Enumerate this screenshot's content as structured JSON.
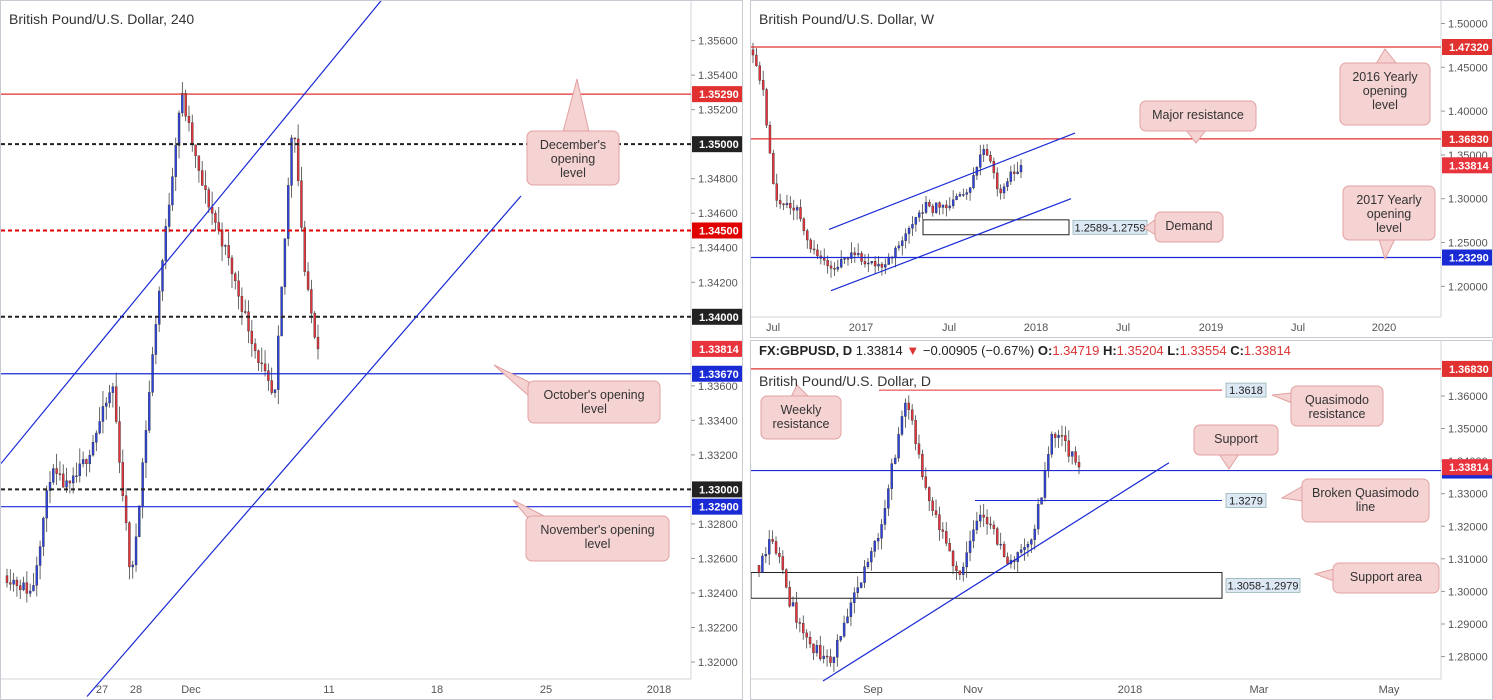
{
  "chart_data": [
    {
      "id": "h4",
      "type": "candlestick",
      "title": "British Pound/U.S. Dollar, 240",
      "ylim": [
        1.3189,
        1.3576
      ],
      "y_ticks": [
        "1.35600",
        "1.35400",
        "1.35200",
        "1.34800",
        "1.34600",
        "1.34400",
        "1.34200",
        "1.33600",
        "1.33400",
        "1.33200",
        "1.32800",
        "1.32600",
        "1.32400",
        "1.32200",
        "1.32000"
      ],
      "x_ticks": [
        "27",
        "28",
        "Dec",
        "11",
        "18",
        "25",
        "2018"
      ],
      "levels": [
        {
          "value": 1.3529,
          "label": "1.35290",
          "color": "#e03030",
          "style": "solid"
        },
        {
          "value": 1.35,
          "label": "1.35000",
          "color": "#222222",
          "style": "dashed"
        },
        {
          "value": 1.345,
          "label": "1.34500",
          "color": "#e00000",
          "style": "dashed"
        },
        {
          "value": 1.34,
          "label": "1.34000",
          "color": "#222222",
          "style": "dashed"
        },
        {
          "value": 1.3367,
          "label": "1.33670",
          "color": "#1a2bd6",
          "style": "solid"
        },
        {
          "value": 1.33,
          "label": "1.33000",
          "color": "#222222",
          "style": "dashed"
        },
        {
          "value": 1.329,
          "label": "1.32900",
          "color": "#1a2bd6",
          "style": "solid"
        }
      ],
      "last_price": {
        "value": 1.33814,
        "label": "1.33814"
      },
      "annotations": [
        {
          "text": "December's opening level"
        },
        {
          "text": "October's opening level"
        },
        {
          "text": "November's opening level"
        }
      ]
    },
    {
      "id": "weekly",
      "type": "candlestick",
      "title": "British Pound/U.S. Dollar, W",
      "ylim": [
        1.165,
        1.512
      ],
      "y_ticks": [
        "1.50000",
        "1.45000",
        "1.40000",
        "1.35000",
        "1.30000",
        "1.25000",
        "1.20000"
      ],
      "x_ticks": [
        "Jul",
        "2017",
        "Jul",
        "2018",
        "Jul",
        "2019",
        "Jul",
        "2020"
      ],
      "levels": [
        {
          "value": 1.4732,
          "label": "1.47320",
          "color": "#e03030",
          "style": "solid"
        },
        {
          "value": 1.3683,
          "label": "1.36830",
          "color": "#e03030",
          "style": "solid"
        },
        {
          "value": 1.2329,
          "label": "1.23290",
          "color": "#1a2bd6",
          "style": "solid"
        }
      ],
      "zones": [
        {
          "label": "1.2589-1.2759",
          "low": 1.2589,
          "high": 1.2759
        }
      ],
      "last_price": {
        "value": 1.33814,
        "label": "1.33814"
      },
      "annotations": [
        {
          "text": "2016 Yearly opening level"
        },
        {
          "text": "Major resistance"
        },
        {
          "text": "Demand"
        },
        {
          "text": "2017 Yearly opening level"
        }
      ]
    },
    {
      "id": "daily",
      "type": "candlestick",
      "header": {
        "symbol": "FX:GBPUSD, D",
        "last": "1.33814",
        "change": "−0.00905 (−0.67%)",
        "o": "1.34719",
        "h": "1.35204",
        "l": "1.33554",
        "c": "1.33814",
        "o_label": "O:",
        "h_label": "H:",
        "l_label": "L:",
        "c_label": "C:"
      },
      "title": "British Pound/U.S. Dollar, D",
      "ylim": [
        1.2725,
        1.3695
      ],
      "y_ticks": [
        "1.36000",
        "1.35000",
        "1.34000",
        "1.33000",
        "1.32000",
        "1.31000",
        "1.30000",
        "1.29000",
        "1.28000"
      ],
      "x_ticks": [
        "Sep",
        "Nov",
        "2018",
        "Mar",
        "May"
      ],
      "levels": [
        {
          "value": 1.3683,
          "label": "1.36830",
          "color": "#e03030",
          "style": "solid"
        },
        {
          "value": 1.3371,
          "label": "1.33710",
          "color": "#1a2bd6",
          "style": "solid"
        }
      ],
      "rays": [
        {
          "value": 1.3618,
          "label": "1.3618"
        },
        {
          "value": 1.3279,
          "label": "1.3279"
        }
      ],
      "zones": [
        {
          "label": "1.3058-1.2979",
          "low": 1.2979,
          "high": 1.3058
        }
      ],
      "last_price": {
        "value": 1.33814,
        "label": "1.33814"
      },
      "annotations": [
        {
          "text": "Weekly resistance"
        },
        {
          "text": "Quasimodo resistance"
        },
        {
          "text": "Support"
        },
        {
          "text": "Broken Quasimodo line"
        },
        {
          "text": "Support area"
        }
      ]
    }
  ],
  "colors": {
    "bull": "#2f43e0",
    "bear": "#e8323c",
    "axis_text": "#555555",
    "callout_fill": "#f6d3d3",
    "callout_border": "#e2a0a0"
  }
}
